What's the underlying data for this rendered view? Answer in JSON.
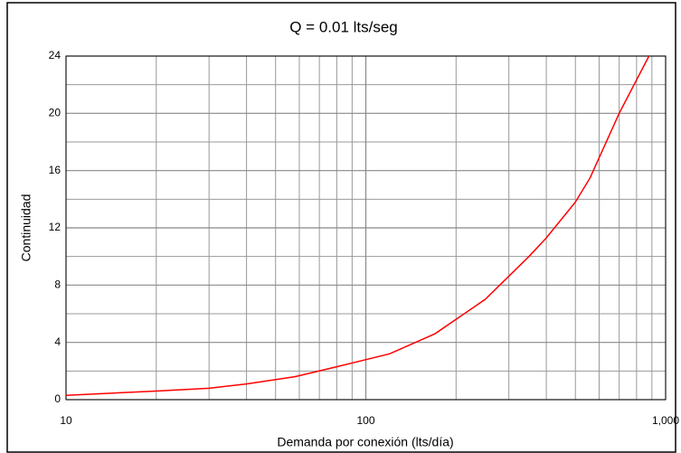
{
  "chart_data": {
    "type": "line",
    "title": "Q = 0.01 lts/seg",
    "x_label": "Demanda por conexión (lts/día)",
    "y_label": "Continuidad",
    "x": [
      10,
      20,
      30,
      40,
      58,
      80,
      120,
      170,
      250,
      350,
      400,
      500,
      560,
      700,
      880
    ],
    "series": [
      {
        "color": "#ff0000",
        "values": [
          0.3,
          0.6,
          0.8,
          1.1,
          1.6,
          2.3,
          3.2,
          4.6,
          7,
          10,
          11.3,
          13.8,
          15.5,
          20,
          24
        ]
      }
    ],
    "x_log": true,
    "xlim": [
      10,
      1000
    ],
    "xticks": [
      10,
      100,
      {
        "value": 1000,
        "label": "1,000"
      }
    ],
    "ylim": [
      0,
      24
    ],
    "yticks": [
      0,
      4,
      8,
      12,
      16,
      20,
      24
    ],
    "grid": true,
    "minor_grid": true
  }
}
